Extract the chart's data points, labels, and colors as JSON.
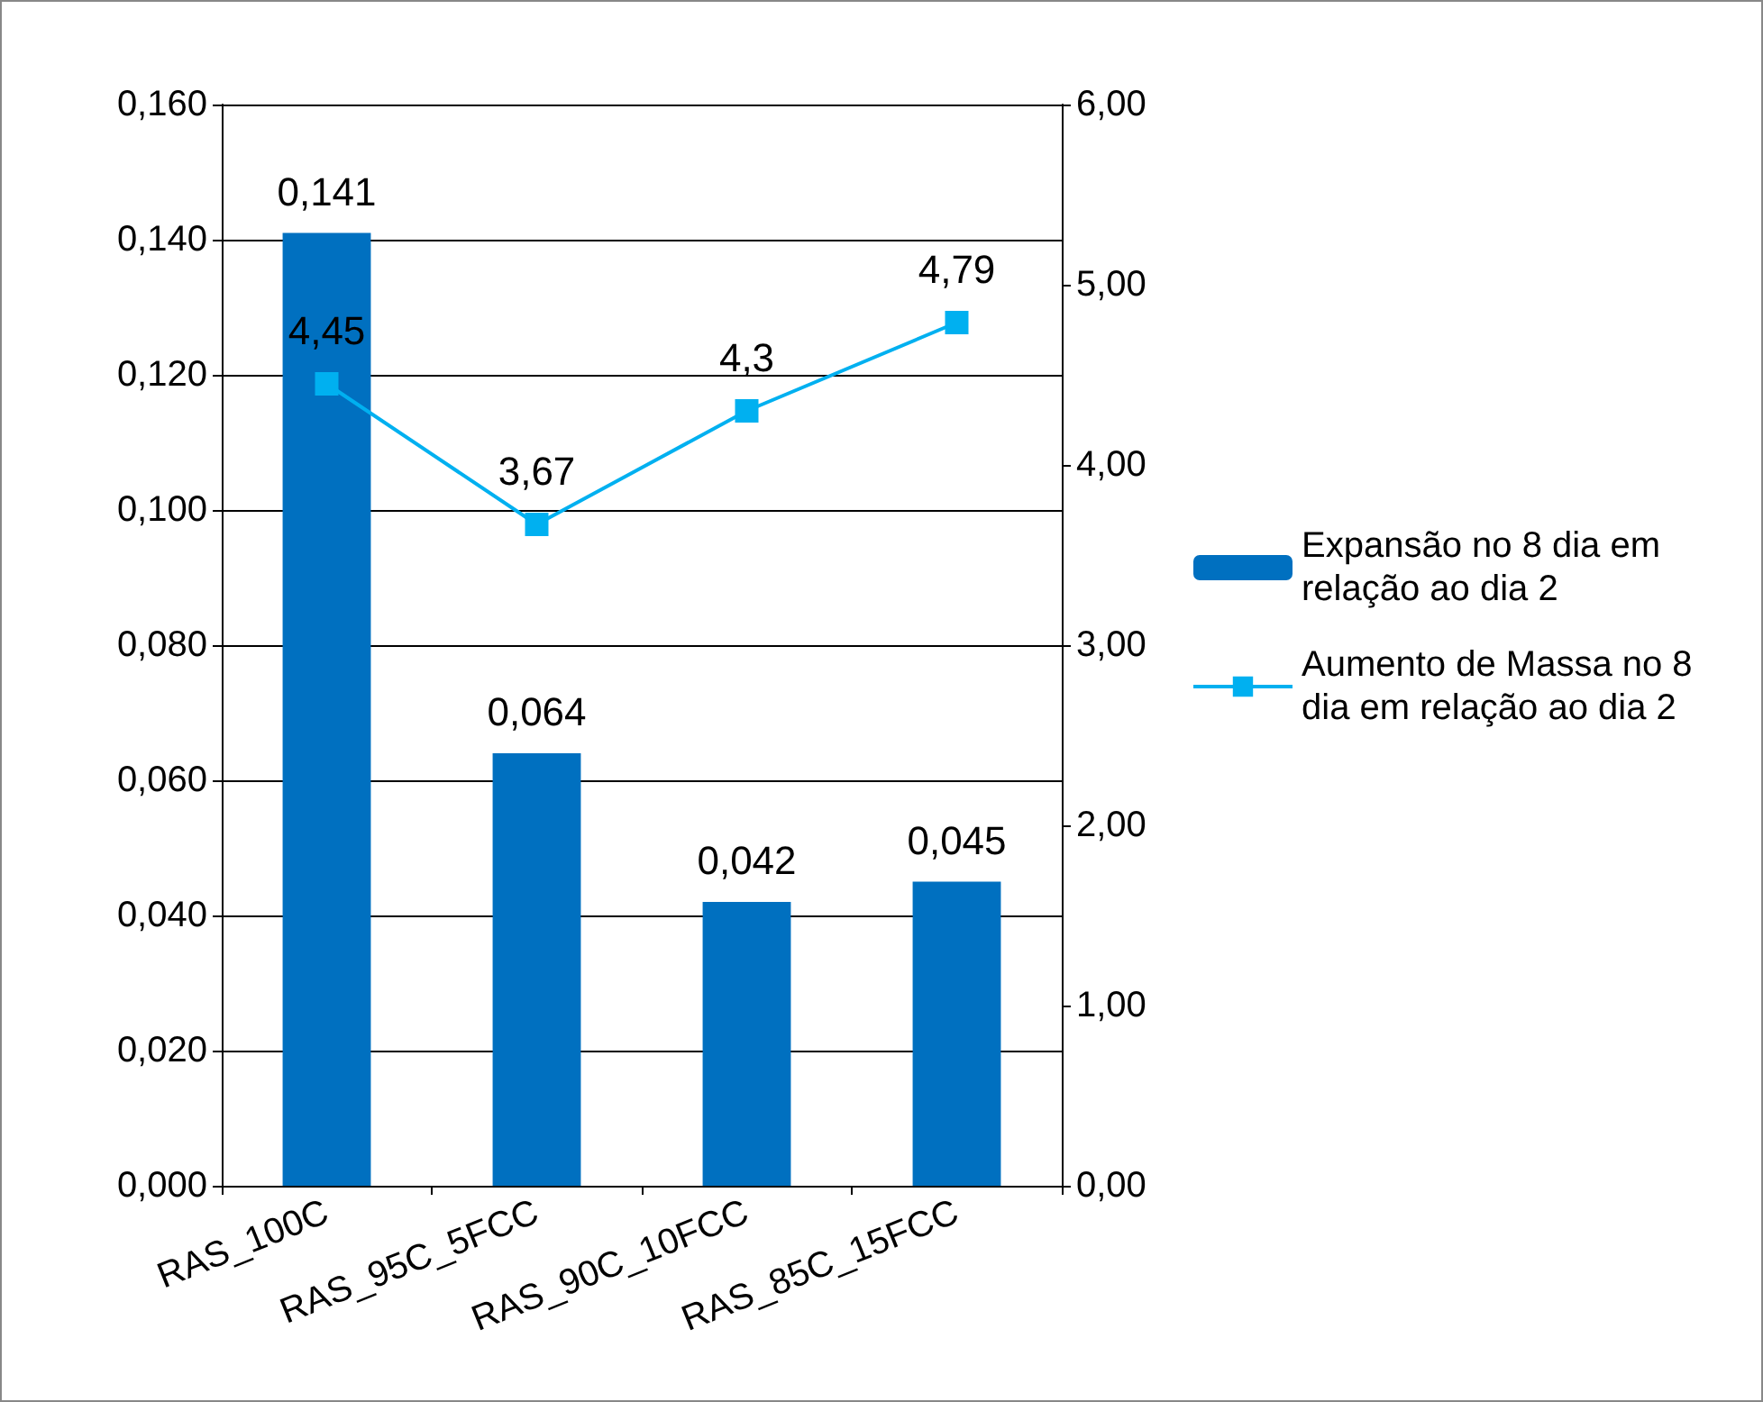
{
  "chart_data": {
    "type": "bar",
    "categories": [
      "RAS_100C",
      "RAS_95C_5FCC",
      "RAS_90C_10FCC",
      "RAS_85C_15FCC"
    ],
    "series": [
      {
        "name": "Expansão no 8 dia em relação ao dia 2",
        "color": "#0070c0",
        "values": [
          0.141,
          0.064,
          0.042,
          0.045
        ],
        "value_labels": [
          "0,141",
          "0,064",
          "0,042",
          "0,045"
        ]
      },
      {
        "name": "Aumento de Massa no 8 dia em relação ao dia 2",
        "type": "line",
        "axis": "y2",
        "color": "#00b0f0",
        "marker": "square",
        "values": [
          4.45,
          3.67,
          4.3,
          4.79
        ],
        "value_labels": [
          "4,45",
          "3,67",
          "4,3",
          "4,79"
        ]
      }
    ],
    "ylim": [
      0,
      0.16
    ],
    "yticks": [
      {
        "value": 0,
        "label": "0,000"
      },
      {
        "value": 0.02,
        "label": "0,020"
      },
      {
        "value": 0.04,
        "label": "0,040"
      },
      {
        "value": 0.06,
        "label": "0,060"
      },
      {
        "value": 0.08,
        "label": "0,080"
      },
      {
        "value": 0.1,
        "label": "0,100"
      },
      {
        "value": 0.12,
        "label": "0,120"
      },
      {
        "value": 0.14,
        "label": "0,140"
      },
      {
        "value": 0.16,
        "label": "0,160"
      }
    ],
    "y2lim": [
      0,
      6
    ],
    "y2ticks": [
      {
        "value": 0,
        "label": "0,00"
      },
      {
        "value": 1,
        "label": "1,00"
      },
      {
        "value": 2,
        "label": "2,00"
      },
      {
        "value": 3,
        "label": "3,00"
      },
      {
        "value": 4,
        "label": "4,00"
      },
      {
        "value": 5,
        "label": "5,00"
      },
      {
        "value": 6,
        "label": "6,00"
      }
    ],
    "grid": "y",
    "legend": "right"
  }
}
